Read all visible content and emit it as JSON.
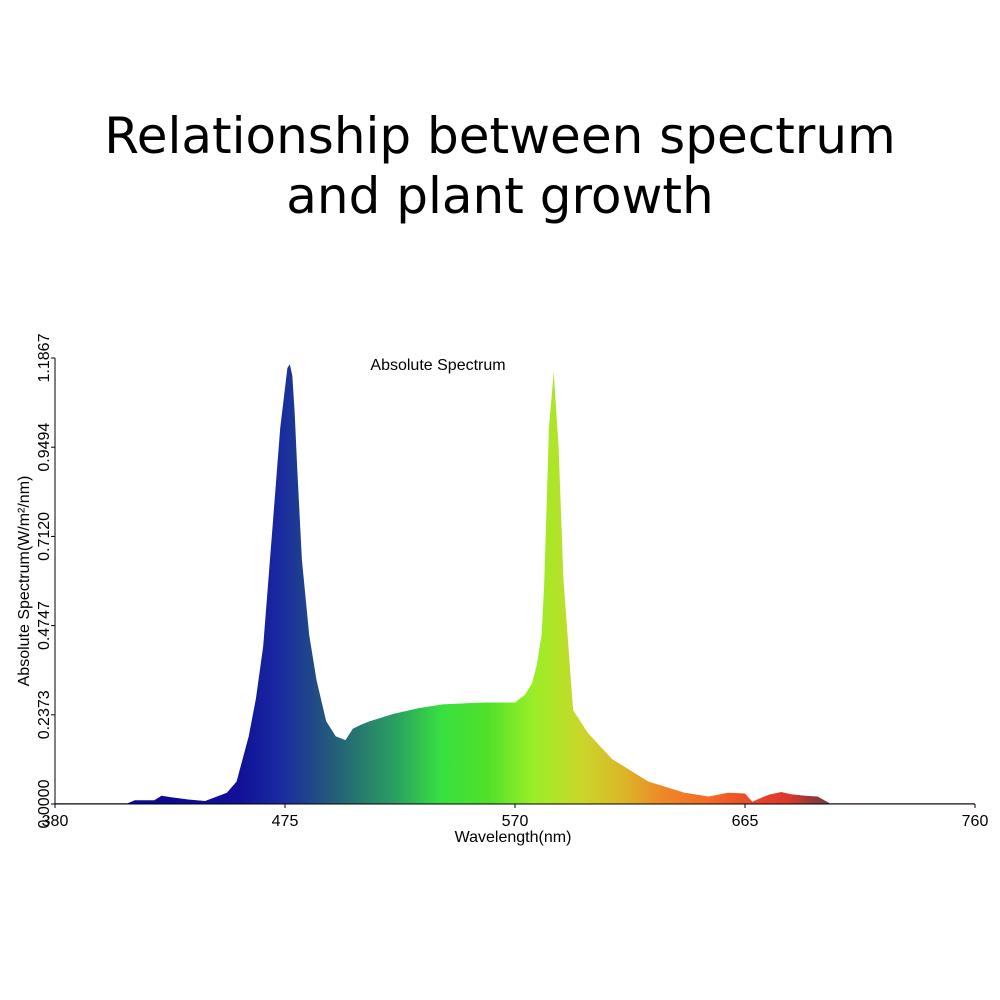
{
  "title": {
    "line1": "Relationship between spectrum",
    "line2": "and plant growth"
  },
  "chart_data": {
    "type": "area",
    "title": "Absolute Spectrum",
    "xlabel": "Wavelength(nm)",
    "ylabel": "Absolute Spectrum(W/m²/nm)",
    "xlim": [
      380,
      760
    ],
    "ylim": [
      0,
      1.1867
    ],
    "x_ticks": [
      "380",
      "475",
      "570",
      "665",
      "760"
    ],
    "y_ticks": [
      "0.0000",
      "0.2373",
      "0.4747",
      "0.7120",
      "0.9494",
      "1.1867"
    ],
    "grid": false,
    "series": [
      {
        "x": [
          380,
          410,
          413,
          421,
          424,
          428,
          435,
          442,
          451,
          455,
          460,
          463,
          466,
          470,
          473,
          476,
          477,
          478,
          479,
          480,
          482,
          485,
          488,
          492,
          496,
          500,
          503,
          506,
          510,
          520,
          530,
          540,
          550,
          558,
          565,
          570,
          574,
          577,
          579,
          581,
          582,
          583,
          584,
          586,
          588,
          590,
          594,
          600,
          610,
          625,
          640,
          650,
          658,
          665,
          668,
          670,
          675,
          680,
          684,
          690,
          695,
          700,
          760
        ],
        "y": [
          0.002,
          0.002,
          0.01,
          0.01,
          0.022,
          0.018,
          0.012,
          0.008,
          0.03,
          0.06,
          0.18,
          0.28,
          0.42,
          0.75,
          1.0,
          1.16,
          1.17,
          1.14,
          1.04,
          0.9,
          0.65,
          0.45,
          0.33,
          0.22,
          0.18,
          0.17,
          0.2,
          0.21,
          0.22,
          0.24,
          0.255,
          0.265,
          0.268,
          0.27,
          0.27,
          0.27,
          0.29,
          0.32,
          0.37,
          0.45,
          0.58,
          0.78,
          1.0,
          1.15,
          0.95,
          0.6,
          0.25,
          0.19,
          0.12,
          0.06,
          0.03,
          0.02,
          0.03,
          0.028,
          0.006,
          0.012,
          0.025,
          0.032,
          0.026,
          0.022,
          0.02,
          0.002,
          0.002
        ]
      }
    ]
  }
}
